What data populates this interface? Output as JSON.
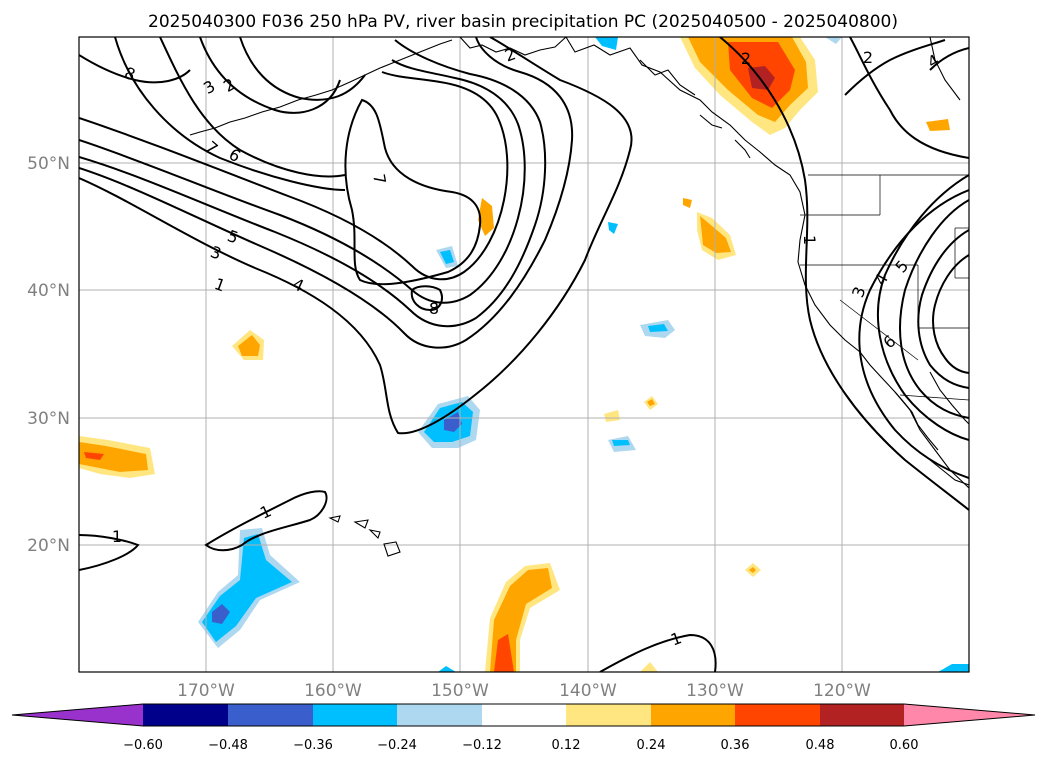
{
  "title": "2025040300 F036 250 hPa PV, river basin precipitation PC (2025040500 - 2025040800)",
  "map": {
    "lon_range": [
      -180,
      -110
    ],
    "lat_range": [
      10,
      60
    ],
    "lat_ticks": [
      {
        "lat": 50,
        "label": "50°N"
      },
      {
        "lat": 40,
        "label": "40°N"
      },
      {
        "lat": 30,
        "label": "30°N"
      },
      {
        "lat": 20,
        "label": "20°N"
      }
    ],
    "lon_ticks": [
      {
        "lon": -170,
        "label": "170°W"
      },
      {
        "lon": -160,
        "label": "160°W"
      },
      {
        "lon": -150,
        "label": "150°W"
      },
      {
        "lon": -140,
        "label": "140°W"
      },
      {
        "lon": -130,
        "label": "130°W"
      },
      {
        "lon": -120,
        "label": "120°W"
      }
    ],
    "grid_color": "#b0b0b0",
    "contour_labels": [
      "8",
      "3",
      "2",
      "7",
      "6",
      "2",
      "7",
      "5",
      "3",
      "1",
      "4",
      "8",
      "1",
      "1",
      "1",
      "3",
      "4",
      "5",
      "6",
      "1",
      "2",
      "2",
      "4"
    ]
  },
  "colorbar": {
    "tick_labels": [
      "−0.60",
      "−0.48",
      "−0.36",
      "−0.24",
      "−0.12",
      "0.12",
      "0.24",
      "0.36",
      "0.48",
      "0.60"
    ],
    "colors": [
      "#9932cc",
      "#00008b",
      "#3a5fcd",
      "#00bfff",
      "#add8f0",
      "#ffffff",
      "#ffe680",
      "#ffa500",
      "#ff4500",
      "#b22222",
      "#ff88aa"
    ]
  },
  "shading_colors": {
    "neg1": "#add8f0",
    "neg2": "#00bfff",
    "neg3": "#3a5fcd",
    "pos1": "#ffe680",
    "pos2": "#ffa500",
    "pos3": "#ff4500",
    "pos4": "#b22222"
  }
}
